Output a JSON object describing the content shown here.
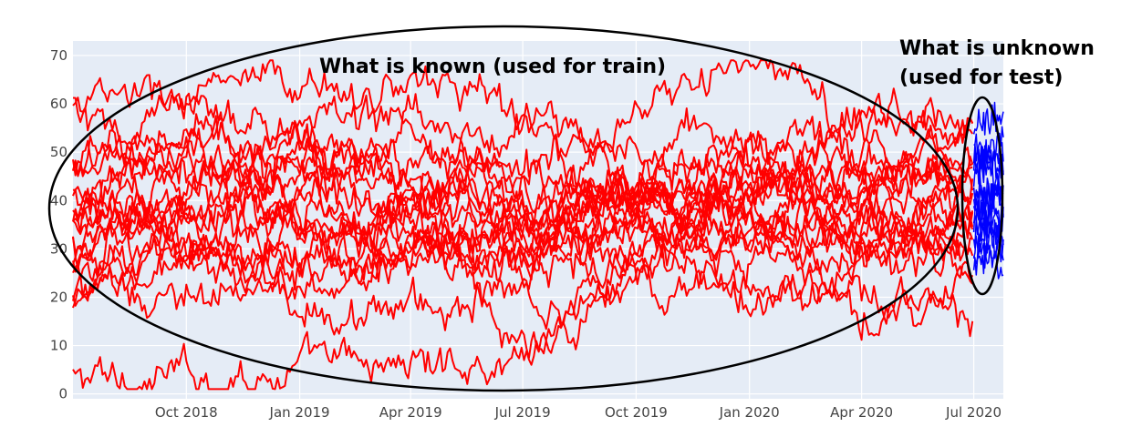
{
  "chart_data": {
    "type": "line",
    "title": "",
    "xlabel": "",
    "ylabel": "",
    "x_range": [
      "2018-07-01",
      "2020-07-25"
    ],
    "ylim": [
      -1,
      73
    ],
    "yticks": [
      0,
      10,
      20,
      30,
      40,
      50,
      60,
      70
    ],
    "xticks": [
      {
        "date": "2018-10-01",
        "label": "Oct 2018"
      },
      {
        "date": "2019-01-01",
        "label": "Jan 2019"
      },
      {
        "date": "2019-04-01",
        "label": "Apr 2019"
      },
      {
        "date": "2019-07-01",
        "label": "Jul 2019"
      },
      {
        "date": "2019-10-01",
        "label": "Oct 2019"
      },
      {
        "date": "2020-01-01",
        "label": "Jan 2020"
      },
      {
        "date": "2020-04-01",
        "label": "Apr 2020"
      },
      {
        "date": "2020-07-01",
        "label": "Jul 2020"
      }
    ],
    "grid": true,
    "legend": "none",
    "background_color": "#e5ecf6",
    "colors": {
      "train": "#ff0000",
      "test": "#0000ff",
      "ellipse": "#000000"
    },
    "split_date": "2020-07-01",
    "end_date": "2020-07-25",
    "series": [
      {
        "group": "train",
        "start": 3,
        "mean": 30,
        "points": [
          [
            "2019-06-15",
            7
          ],
          [
            "2019-09-15",
            25
          ],
          [
            "2020-01-15",
            35
          ]
        ]
      },
      {
        "group": "train",
        "start": 58,
        "mean": 42,
        "points": [
          [
            "2018-08-15",
            50
          ],
          [
            "2019-02-15",
            48
          ],
          [
            "2019-06-01",
            28
          ],
          [
            "2019-11-01",
            45
          ],
          [
            "2020-04-01",
            55
          ]
        ]
      },
      {
        "group": "train",
        "start": 60,
        "mean": 44,
        "points": [
          [
            "2018-11-01",
            62
          ],
          [
            "2019-05-15",
            64
          ],
          [
            "2019-08-15",
            50
          ],
          [
            "2020-01-01",
            68
          ],
          [
            "2020-05-01",
            48
          ]
        ]
      },
      {
        "group": "train",
        "start": 17,
        "mean": 28,
        "points": [
          [
            "2018-09-15",
            25
          ],
          [
            "2019-02-01",
            18
          ],
          [
            "2019-07-01",
            20
          ],
          [
            "2019-12-01",
            22
          ],
          [
            "2020-06-01",
            16
          ]
        ]
      },
      {
        "group": "train",
        "start": 20,
        "mean": 30,
        "points": [
          [
            "2018-10-15",
            22
          ],
          [
            "2019-04-01",
            30
          ],
          [
            "2019-07-15",
            12
          ],
          [
            "2019-10-15",
            26
          ],
          [
            "2020-03-01",
            20
          ]
        ]
      },
      {
        "group": "train",
        "start": 35,
        "mean": 38,
        "points": [
          [
            "2018-10-01",
            60
          ],
          [
            "2019-01-15",
            36
          ],
          [
            "2019-06-15",
            40
          ],
          [
            "2019-11-15",
            54
          ],
          [
            "2020-04-15",
            36
          ]
        ]
      },
      {
        "group": "train",
        "start": 30,
        "mean": 36,
        "points": [
          [
            "2018-10-15",
            45
          ],
          [
            "2019-03-15",
            28
          ],
          [
            "2019-09-01",
            40
          ],
          [
            "2020-02-01",
            35
          ],
          [
            "2020-06-15",
            50
          ]
        ]
      },
      {
        "group": "train",
        "start": 40,
        "mean": 40,
        "points": [
          [
            "2018-11-15",
            30
          ],
          [
            "2019-04-15",
            55
          ],
          [
            "2019-08-01",
            30
          ],
          [
            "2019-12-15",
            48
          ],
          [
            "2020-05-15",
            38
          ]
        ]
      },
      {
        "group": "train",
        "start": 25,
        "mean": 33,
        "points": [
          [
            "2018-09-01",
            35
          ],
          [
            "2019-02-15",
            26
          ],
          [
            "2019-06-15",
            34
          ],
          [
            "2019-10-15",
            42
          ],
          [
            "2020-03-15",
            28
          ]
        ]
      },
      {
        "group": "train",
        "start": 45,
        "mean": 42,
        "points": [
          [
            "2018-10-15",
            52
          ],
          [
            "2019-03-01",
            40
          ],
          [
            "2019-07-01",
            36
          ],
          [
            "2019-11-15",
            48
          ],
          [
            "2020-04-01",
            44
          ]
        ]
      },
      {
        "group": "train",
        "start": 32,
        "mean": 36,
        "points": [
          [
            "2018-09-15",
            28
          ],
          [
            "2019-01-15",
            44
          ],
          [
            "2019-06-01",
            32
          ],
          [
            "2019-10-01",
            36
          ],
          [
            "2020-03-01",
            42
          ]
        ]
      },
      {
        "group": "train",
        "start": 50,
        "mean": 44,
        "points": [
          [
            "2018-11-01",
            56
          ],
          [
            "2019-03-15",
            46
          ],
          [
            "2019-07-15",
            56
          ],
          [
            "2019-11-01",
            38
          ],
          [
            "2020-04-15",
            50
          ]
        ]
      },
      {
        "group": "train",
        "start": 27,
        "mean": 32,
        "points": [
          [
            "2018-09-15",
            40
          ],
          [
            "2019-02-01",
            30
          ],
          [
            "2019-06-01",
            24
          ],
          [
            "2019-10-15",
            32
          ],
          [
            "2020-02-15",
            26
          ]
        ]
      },
      {
        "group": "train",
        "start": 38,
        "mean": 38,
        "points": [
          [
            "2018-10-01",
            34
          ],
          [
            "2019-01-01",
            50
          ],
          [
            "2019-05-15",
            42
          ],
          [
            "2019-09-15",
            30
          ],
          [
            "2020-02-01",
            40
          ]
        ]
      },
      {
        "group": "train",
        "start": 22,
        "mean": 34,
        "points": [
          [
            "2018-09-01",
            30
          ],
          [
            "2019-01-15",
            24
          ],
          [
            "2019-05-15",
            46
          ],
          [
            "2019-10-01",
            34
          ],
          [
            "2020-03-15",
            30
          ]
        ]
      },
      {
        "group": "train",
        "start": 36,
        "mean": 40,
        "points": [
          [
            "2018-10-15",
            40
          ],
          [
            "2019-02-15",
            58
          ],
          [
            "2019-07-01",
            44
          ],
          [
            "2019-12-01",
            40
          ],
          [
            "2020-04-01",
            58
          ]
        ]
      },
      {
        "group": "train",
        "start": 33,
        "mean": 36,
        "points": [
          [
            "2018-09-15",
            48
          ],
          [
            "2019-02-01",
            32
          ],
          [
            "2019-06-15",
            30
          ],
          [
            "2019-11-01",
            46
          ],
          [
            "2020-05-01",
            34
          ]
        ]
      },
      {
        "group": "train",
        "start": 42,
        "mean": 40,
        "points": [
          [
            "2018-10-01",
            38
          ],
          [
            "2019-03-01",
            34
          ],
          [
            "2019-07-15",
            48
          ],
          [
            "2019-11-15",
            30
          ],
          [
            "2020-04-01",
            40
          ]
        ]
      },
      {
        "group": "train",
        "start": 29,
        "mean": 34,
        "points": [
          [
            "2018-09-01",
            26
          ],
          [
            "2019-01-01",
            40
          ],
          [
            "2019-06-15",
            26
          ],
          [
            "2019-10-01",
            38
          ],
          [
            "2020-03-01",
            34
          ]
        ]
      },
      {
        "group": "train",
        "start": 48,
        "mean": 42,
        "points": [
          [
            "2018-10-15",
            46
          ],
          [
            "2019-02-01",
            52
          ],
          [
            "2019-06-01",
            38
          ],
          [
            "2019-11-15",
            42
          ],
          [
            "2020-04-15",
            46
          ]
        ]
      },
      {
        "group": "test",
        "start": 50,
        "end": 40
      },
      {
        "group": "test",
        "start": 45,
        "end": 55
      },
      {
        "group": "test",
        "start": 30,
        "end": 25
      },
      {
        "group": "test",
        "start": 38,
        "end": 42
      },
      {
        "group": "test",
        "start": 42,
        "end": 35
      },
      {
        "group": "test",
        "start": 35,
        "end": 48
      },
      {
        "group": "test",
        "start": 27,
        "end": 32
      },
      {
        "group": "test",
        "start": 55,
        "end": 58
      },
      {
        "group": "test",
        "start": 40,
        "end": 30
      },
      {
        "group": "test",
        "start": 33,
        "end": 38
      },
      {
        "group": "test",
        "start": 47,
        "end": 50
      },
      {
        "group": "test",
        "start": 36,
        "end": 28
      },
      {
        "group": "test",
        "start": 52,
        "end": 45
      },
      {
        "group": "test",
        "start": 29,
        "end": 36
      },
      {
        "group": "test",
        "start": 43,
        "end": 40
      }
    ],
    "annotations": {
      "known_label": "What is known (used for train)",
      "unknown_label_line1": "What is unknown",
      "unknown_label_line2": "(used for test)"
    }
  }
}
